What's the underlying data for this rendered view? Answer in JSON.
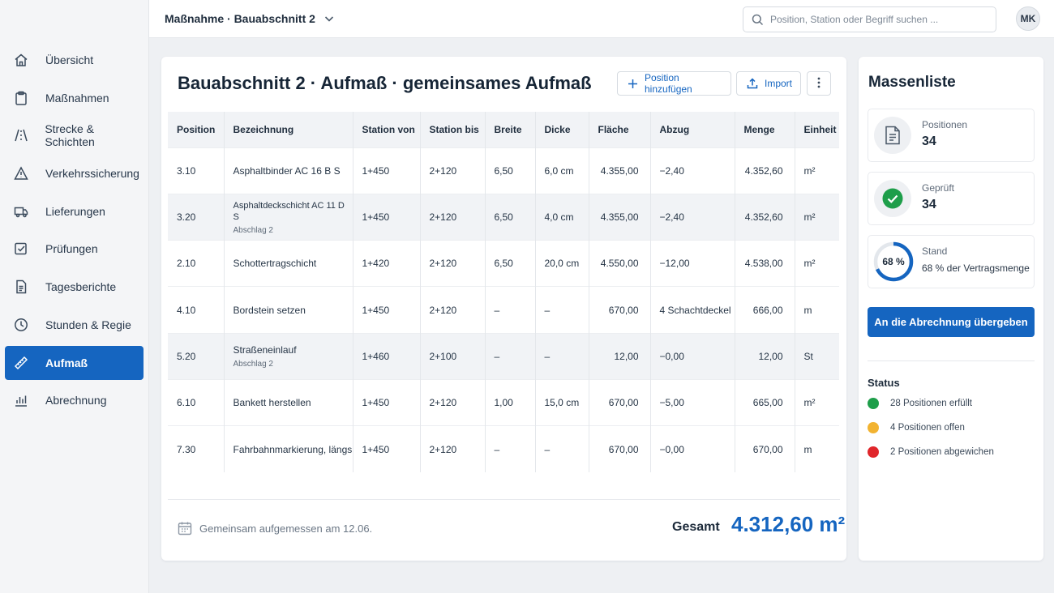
{
  "header": {
    "breadcrumb": "Maßnahme · Bauabschnitt 2",
    "search_placeholder": "Position, Station oder Begriff suchen ...",
    "user_initials": "MK"
  },
  "sidebar": {
    "items": [
      {
        "label": "Übersicht",
        "icon": "home-icon"
      },
      {
        "label": "Maßnahmen",
        "icon": "clipboard-icon"
      },
      {
        "label": "Strecke & Schichten",
        "icon": "road-icon"
      },
      {
        "label": "Verkehrssicherung",
        "icon": "warning-icon"
      },
      {
        "label": "Lieferungen",
        "icon": "truck-icon"
      },
      {
        "label": "Prüfungen",
        "icon": "checkbox-icon"
      },
      {
        "label": "Tagesberichte",
        "icon": "document-icon"
      },
      {
        "label": "Stunden & Regie",
        "icon": "clock-icon"
      },
      {
        "label": "Aufmaß",
        "icon": "ruler-icon",
        "active": true
      },
      {
        "label": "Abrechnung",
        "icon": "bar-chart-icon"
      }
    ]
  },
  "main": {
    "title": "Bauabschnitt 2 · Aufmaß · gemeinsames Aufmaß",
    "add_label": "Position hinzufügen",
    "import_label": "Import",
    "columns": [
      "Position",
      "Bezeichnung",
      "Station von",
      "Station bis",
      "Breite",
      "Dicke",
      "Fläche",
      "Abzug",
      "Menge",
      "Einheit"
    ],
    "rows": [
      {
        "position": "3.10",
        "bezeichnung": "Asphaltbinder AC 16 B S",
        "sub": "",
        "von": "1+450",
        "bis": "2+120",
        "breite": "6,50",
        "dicke": "6,0 cm",
        "flaeche": "4.355,00",
        "abzug": "−2,40",
        "menge": "4.352,60",
        "einheit": "m²"
      },
      {
        "position": "3.20",
        "bezeichnung": "Asphaltdeckschicht AC 11 D S",
        "sub": "Abschlag 2",
        "von": "1+450",
        "bis": "2+120",
        "breite": "6,50",
        "dicke": "4,0 cm",
        "flaeche": "4.355,00",
        "abzug": "−2,40",
        "menge": "4.352,60",
        "einheit": "m²"
      },
      {
        "position": "2.10",
        "bezeichnung": "Schottertragschicht",
        "sub": "",
        "von": "1+420",
        "bis": "2+120",
        "breite": "6,50",
        "dicke": "20,0 cm",
        "flaeche": "4.550,00",
        "abzug": "−12,00",
        "menge": "4.538,00",
        "einheit": "m²"
      },
      {
        "position": "4.10",
        "bezeichnung": "Bordstein setzen",
        "sub": "",
        "von": "1+450",
        "bis": "2+120",
        "breite": "–",
        "dicke": "–",
        "flaeche": "670,00",
        "abzug": "4 Schachtdeckel",
        "menge": "666,00",
        "einheit": "m"
      },
      {
        "position": "5.20",
        "bezeichnung": "Straßeneinlauf",
        "sub": "Abschlag 2",
        "von": "1+460",
        "bis": "2+100",
        "breite": "–",
        "dicke": "–",
        "flaeche": "12,00",
        "abzug": "−0,00",
        "menge": "12,00",
        "einheit": "St"
      },
      {
        "position": "6.10",
        "bezeichnung": "Bankett herstellen",
        "sub": "",
        "von": "1+450",
        "bis": "2+120",
        "breite": "1,00",
        "dicke": "15,0 cm",
        "flaeche": "670,00",
        "abzug": "−5,00",
        "menge": "665,00",
        "einheit": "m²"
      },
      {
        "position": "7.30",
        "bezeichnung": "Fahrbahnmarkierung, längs",
        "sub": "",
        "von": "1+450",
        "bis": "2+120",
        "breite": "–",
        "dicke": "–",
        "flaeche": "670,00",
        "abzug": "−0,00",
        "menge": "670,00",
        "einheit": "m"
      }
    ],
    "footer_note": "Gemeinsam aufgemessen am 12.06.",
    "total_label": "Gesamt",
    "total_value": "4.312,60 m²"
  },
  "panel": {
    "title": "Massenliste",
    "stats": [
      {
        "label": "Positionen",
        "value": "34",
        "icon": "document-icon"
      },
      {
        "label": "Geprüft",
        "value": "34",
        "icon": "check-circle-icon"
      },
      {
        "label": "Stand",
        "value": "68 % der Vertragsmenge",
        "ring_label": "68 %",
        "progress": 0.68
      }
    ],
    "cta_label": "An die Abrechnung übergeben",
    "status_title": "Status",
    "status": [
      {
        "label": "28 Positionen erfüllt",
        "color": "#1e9e4a"
      },
      {
        "label": "4 Positionen offen",
        "color": "#f2b331"
      },
      {
        "label": "2 Positionen abgewichen",
        "color": "#e0262b"
      }
    ]
  },
  "colors": {
    "accent": "#1565c0"
  }
}
